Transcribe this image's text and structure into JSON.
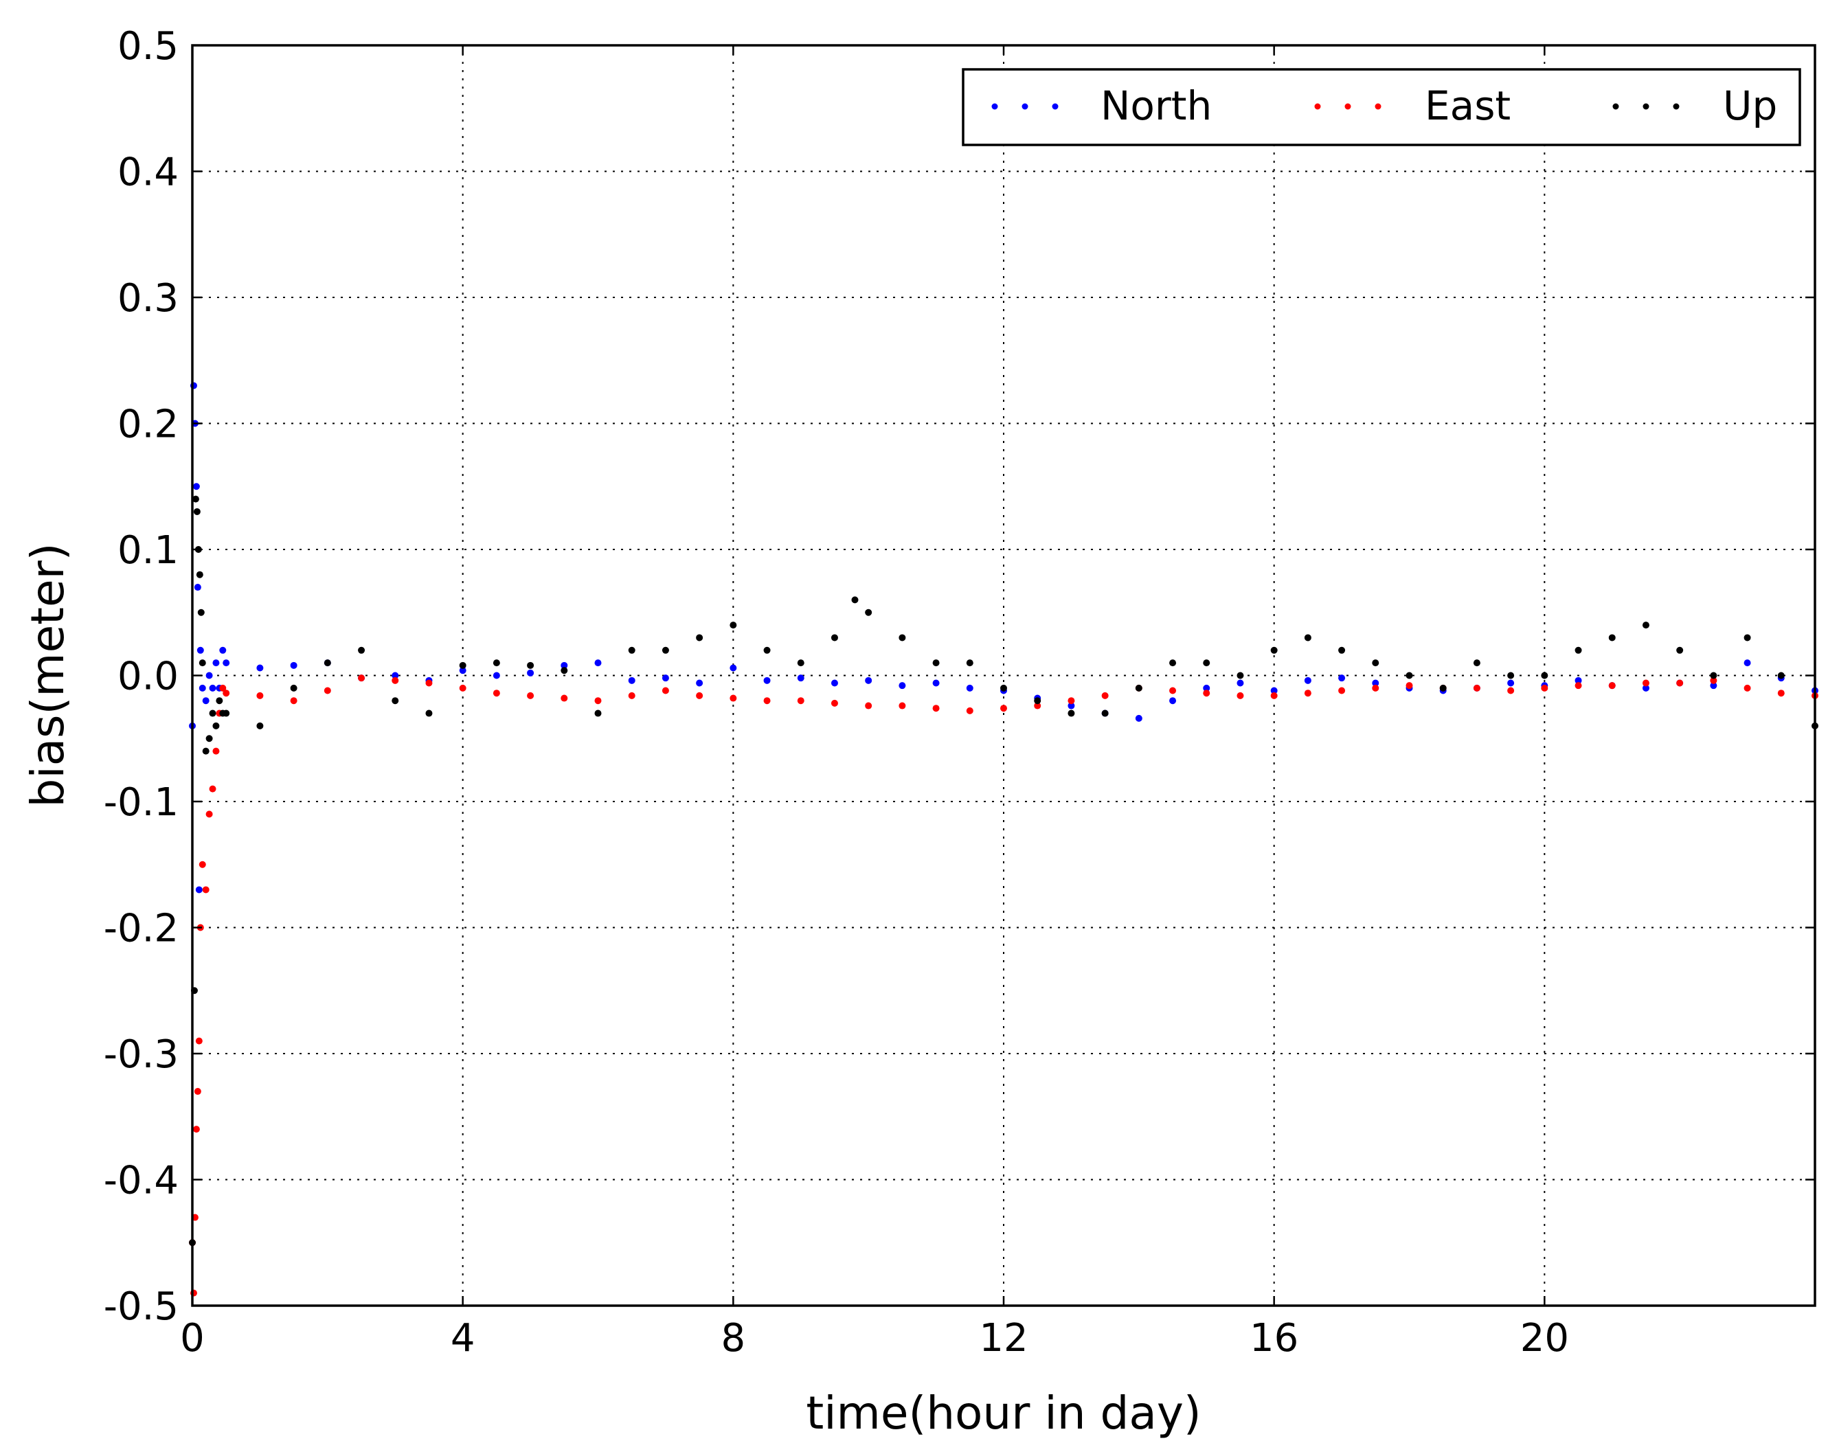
{
  "chart_data": {
    "type": "scatter",
    "title": "",
    "xlabel": "time(hour in day)",
    "ylabel": "bias(meter)",
    "xlim": [
      0,
      24
    ],
    "ylim": [
      -0.5,
      0.5
    ],
    "grid": true,
    "legend_position": "top-right",
    "x_ticks": [
      0,
      4,
      8,
      12,
      16,
      20
    ],
    "x_tick_labels": [
      "0",
      "4",
      "8",
      "12",
      "16",
      "20"
    ],
    "y_ticks": [
      0.5,
      0.4,
      0.3,
      0.2,
      0.1,
      0.0,
      -0.1,
      -0.2,
      -0.3,
      -0.4,
      -0.5
    ],
    "y_tick_labels": [
      "0.5",
      "0.4",
      "0.3",
      "0.2",
      "0.1",
      "0.0",
      "-0.1",
      "-0.2",
      "-0.3",
      "-0.4",
      "-0.5"
    ],
    "legend": [
      "North",
      "East",
      "Up"
    ],
    "series": [
      {
        "name": "North",
        "color": "#0000ff",
        "points": [
          [
            0.0,
            -0.04
          ],
          [
            0.02,
            0.23
          ],
          [
            0.04,
            0.2
          ],
          [
            0.06,
            0.15
          ],
          [
            0.08,
            0.07
          ],
          [
            0.1,
            -0.17
          ],
          [
            0.12,
            0.02
          ],
          [
            0.15,
            -0.01
          ],
          [
            0.2,
            -0.02
          ],
          [
            0.25,
            0.0
          ],
          [
            0.3,
            -0.01
          ],
          [
            0.35,
            0.01
          ],
          [
            0.4,
            -0.01
          ],
          [
            0.45,
            0.02
          ],
          [
            0.5,
            0.01
          ],
          [
            1.0,
            0.006
          ],
          [
            1.5,
            0.008
          ],
          [
            2.0,
            0.01
          ],
          [
            2.5,
            -0.002
          ],
          [
            3.0,
            0.0
          ],
          [
            3.5,
            -0.004
          ],
          [
            4.0,
            0.004
          ],
          [
            4.5,
            0.0
          ],
          [
            5.0,
            0.002
          ],
          [
            5.5,
            0.008
          ],
          [
            6.0,
            0.01
          ],
          [
            6.5,
            -0.004
          ],
          [
            7.0,
            -0.002
          ],
          [
            7.5,
            -0.006
          ],
          [
            8.0,
            0.006
          ],
          [
            8.5,
            -0.004
          ],
          [
            9.0,
            -0.002
          ],
          [
            9.5,
            -0.006
          ],
          [
            10.0,
            -0.004
          ],
          [
            10.5,
            -0.008
          ],
          [
            11.0,
            -0.006
          ],
          [
            11.5,
            -0.01
          ],
          [
            12.0,
            -0.012
          ],
          [
            12.5,
            -0.018
          ],
          [
            13.0,
            -0.024
          ],
          [
            13.5,
            -0.03
          ],
          [
            14.0,
            -0.034
          ],
          [
            14.5,
            -0.02
          ],
          [
            15.0,
            -0.01
          ],
          [
            15.5,
            -0.006
          ],
          [
            16.0,
            -0.012
          ],
          [
            16.5,
            -0.004
          ],
          [
            17.0,
            -0.002
          ],
          [
            17.5,
            -0.006
          ],
          [
            18.0,
            -0.01
          ],
          [
            18.5,
            -0.012
          ],
          [
            19.0,
            -0.01
          ],
          [
            19.5,
            -0.006
          ],
          [
            20.0,
            -0.008
          ],
          [
            20.5,
            -0.004
          ],
          [
            21.0,
            -0.008
          ],
          [
            21.5,
            -0.01
          ],
          [
            22.0,
            -0.006
          ],
          [
            22.5,
            -0.008
          ],
          [
            23.0,
            0.01
          ],
          [
            23.5,
            -0.002
          ],
          [
            24.0,
            -0.012
          ]
        ]
      },
      {
        "name": "East",
        "color": "#ff0000",
        "points": [
          [
            0.0,
            -0.45
          ],
          [
            0.02,
            -0.49
          ],
          [
            0.04,
            -0.43
          ],
          [
            0.06,
            -0.36
          ],
          [
            0.08,
            -0.33
          ],
          [
            0.1,
            -0.29
          ],
          [
            0.12,
            -0.2
          ],
          [
            0.15,
            -0.15
          ],
          [
            0.2,
            -0.17
          ],
          [
            0.25,
            -0.11
          ],
          [
            0.3,
            -0.09
          ],
          [
            0.35,
            -0.06
          ],
          [
            0.4,
            -0.03
          ],
          [
            0.45,
            -0.01
          ],
          [
            0.5,
            -0.014
          ],
          [
            1.0,
            -0.016
          ],
          [
            1.5,
            -0.02
          ],
          [
            2.0,
            -0.012
          ],
          [
            2.5,
            -0.002
          ],
          [
            3.0,
            -0.004
          ],
          [
            3.5,
            -0.006
          ],
          [
            4.0,
            -0.01
          ],
          [
            4.5,
            -0.014
          ],
          [
            5.0,
            -0.016
          ],
          [
            5.5,
            -0.018
          ],
          [
            6.0,
            -0.02
          ],
          [
            6.5,
            -0.016
          ],
          [
            7.0,
            -0.012
          ],
          [
            7.5,
            -0.016
          ],
          [
            8.0,
            -0.018
          ],
          [
            8.5,
            -0.02
          ],
          [
            9.0,
            -0.02
          ],
          [
            9.5,
            -0.022
          ],
          [
            10.0,
            -0.024
          ],
          [
            10.5,
            -0.024
          ],
          [
            11.0,
            -0.026
          ],
          [
            11.5,
            -0.028
          ],
          [
            12.0,
            -0.026
          ],
          [
            12.5,
            -0.024
          ],
          [
            13.0,
            -0.02
          ],
          [
            13.5,
            -0.016
          ],
          [
            14.0,
            -0.01
          ],
          [
            14.5,
            -0.012
          ],
          [
            15.0,
            -0.014
          ],
          [
            15.5,
            -0.016
          ],
          [
            16.0,
            -0.016
          ],
          [
            16.5,
            -0.014
          ],
          [
            17.0,
            -0.012
          ],
          [
            17.5,
            -0.01
          ],
          [
            18.0,
            -0.008
          ],
          [
            18.5,
            -0.01
          ],
          [
            19.0,
            -0.01
          ],
          [
            19.5,
            -0.012
          ],
          [
            20.0,
            -0.01
          ],
          [
            20.5,
            -0.008
          ],
          [
            21.0,
            -0.008
          ],
          [
            21.5,
            -0.006
          ],
          [
            22.0,
            -0.006
          ],
          [
            22.5,
            -0.004
          ],
          [
            23.0,
            -0.01
          ],
          [
            23.5,
            -0.014
          ],
          [
            24.0,
            -0.016
          ]
        ]
      },
      {
        "name": "Up",
        "color": "#000000",
        "points": [
          [
            0.0,
            -0.45
          ],
          [
            0.03,
            -0.25
          ],
          [
            0.05,
            0.14
          ],
          [
            0.07,
            0.13
          ],
          [
            0.09,
            0.1
          ],
          [
            0.11,
            0.08
          ],
          [
            0.13,
            0.05
          ],
          [
            0.15,
            0.01
          ],
          [
            0.2,
            -0.06
          ],
          [
            0.25,
            -0.05
          ],
          [
            0.3,
            -0.03
          ],
          [
            0.35,
            -0.04
          ],
          [
            0.4,
            -0.02
          ],
          [
            0.45,
            -0.03
          ],
          [
            0.5,
            -0.03
          ],
          [
            1.0,
            -0.04
          ],
          [
            1.5,
            -0.01
          ],
          [
            2.0,
            0.01
          ],
          [
            2.5,
            0.02
          ],
          [
            3.0,
            -0.02
          ],
          [
            3.5,
            -0.03
          ],
          [
            4.0,
            0.008
          ],
          [
            4.5,
            0.01
          ],
          [
            5.0,
            0.008
          ],
          [
            5.5,
            0.004
          ],
          [
            6.0,
            -0.03
          ],
          [
            6.5,
            0.02
          ],
          [
            7.0,
            0.02
          ],
          [
            7.5,
            0.03
          ],
          [
            8.0,
            0.04
          ],
          [
            8.5,
            0.02
          ],
          [
            9.0,
            0.01
          ],
          [
            9.5,
            0.03
          ],
          [
            9.8,
            0.06
          ],
          [
            10.0,
            0.05
          ],
          [
            10.5,
            0.03
          ],
          [
            11.0,
            0.01
          ],
          [
            11.5,
            0.01
          ],
          [
            12.0,
            -0.01
          ],
          [
            12.5,
            -0.02
          ],
          [
            13.0,
            -0.03
          ],
          [
            13.5,
            -0.03
          ],
          [
            14.0,
            -0.01
          ],
          [
            14.5,
            0.01
          ],
          [
            15.0,
            0.01
          ],
          [
            15.5,
            0.0
          ],
          [
            16.0,
            0.02
          ],
          [
            16.5,
            0.03
          ],
          [
            17.0,
            0.02
          ],
          [
            17.5,
            0.01
          ],
          [
            18.0,
            0.0
          ],
          [
            18.5,
            -0.01
          ],
          [
            19.0,
            0.01
          ],
          [
            19.5,
            0.0
          ],
          [
            20.0,
            0.0
          ],
          [
            20.5,
            0.02
          ],
          [
            21.0,
            0.03
          ],
          [
            21.5,
            0.04
          ],
          [
            22.0,
            0.02
          ],
          [
            22.5,
            0.0
          ],
          [
            23.0,
            0.03
          ],
          [
            23.5,
            0.0
          ],
          [
            24.0,
            -0.04
          ]
        ]
      }
    ]
  }
}
